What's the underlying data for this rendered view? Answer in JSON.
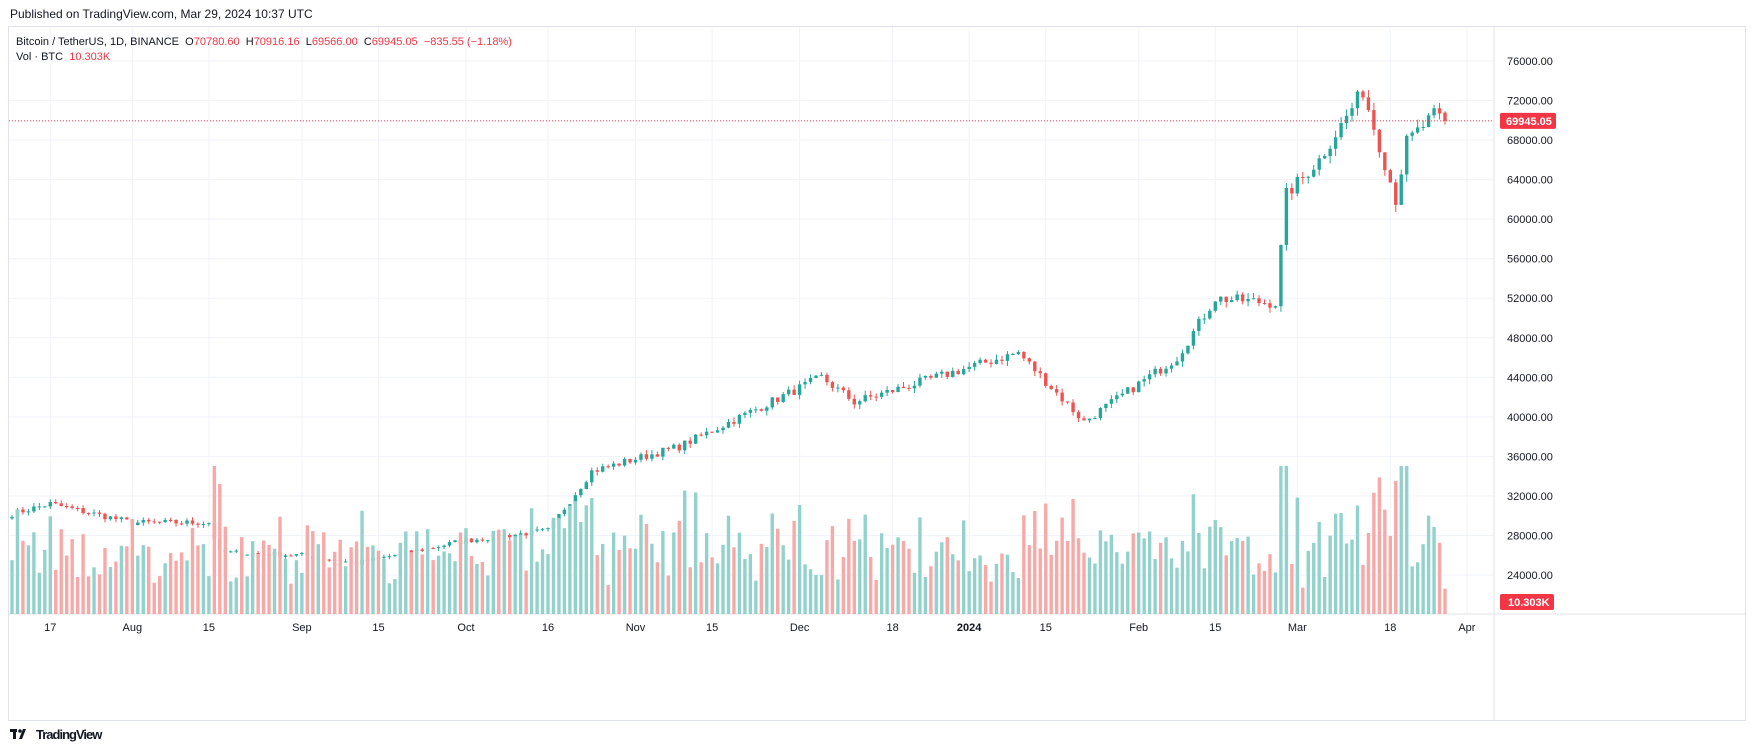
{
  "header": {
    "published": "Published on TradingView.com, Mar 29, 2024 10:37 UTC"
  },
  "legend": {
    "symbol": "Bitcoin / TetherUS, 1D, BINANCE",
    "o_label": "O",
    "o_value": "70780.60",
    "h_label": "H",
    "h_value": "70916.16",
    "l_label": "L",
    "l_value": "69566.00",
    "c_label": "C",
    "c_value": "69945.05",
    "change": "−835.55 (−1.18%)",
    "vol_label": "Vol · BTC",
    "vol_value": "10.303K"
  },
  "footer": {
    "logo_text": "TradingView"
  },
  "colors": {
    "up": "#26a69a",
    "down": "#ef5350",
    "vol_up": "#93d2cc",
    "vol_down": "#f7a9a7",
    "grid": "#f0f3fa",
    "last_price": "#f23645"
  },
  "chart_data": {
    "type": "candlestick",
    "title": "Bitcoin / TetherUS, 1D, BINANCE",
    "y_axis": {
      "ticks": [
        "76000.00",
        "72000.00",
        "68000.00",
        "64000.00",
        "60000.00",
        "56000.00",
        "52000.00",
        "48000.00",
        "44000.00",
        "40000.00",
        "36000.00",
        "32000.00",
        "28000.00",
        "24000.00"
      ],
      "ylim": [
        22000,
        78000
      ]
    },
    "x_axis": {
      "ticks": [
        "17",
        "Aug",
        "15",
        "Sep",
        "15",
        "Oct",
        "16",
        "Nov",
        "15",
        "Dec",
        "18",
        "2024",
        "15",
        "Feb",
        "15",
        "Mar",
        "18",
        "Apr"
      ]
    },
    "last_price": "69945.05",
    "last_volume": "10.303K",
    "key_points": [
      [
        "Jul 10",
        30200
      ],
      [
        "Jul 17",
        31200
      ],
      [
        "Aug 1",
        29300
      ],
      [
        "Aug 15",
        29300
      ],
      [
        "Aug 17",
        26300
      ],
      [
        "Sep 1",
        26000
      ],
      [
        "Sep 11",
        25200
      ],
      [
        "Oct 1",
        27500
      ],
      [
        "Oct 16",
        28500
      ],
      [
        "Oct 24",
        34500
      ],
      [
        "Nov 9",
        37000
      ],
      [
        "Dec 5",
        44000
      ],
      [
        "Dec 11",
        41500
      ],
      [
        "Jan 10",
        46500
      ],
      [
        "Jan 22",
        39500
      ],
      [
        "Feb 8",
        46000
      ],
      [
        "Feb 15",
        52000
      ],
      [
        "Feb 26",
        51500
      ],
      [
        "Feb 28",
        62500
      ],
      [
        "Mar 5",
        66000
      ],
      [
        "Mar 13",
        73000
      ],
      [
        "Mar 19",
        62000
      ],
      [
        "Mar 21",
        67800
      ],
      [
        "Mar 26",
        70500
      ],
      [
        "Mar 28",
        69945
      ]
    ],
    "volume_range_k": [
      10,
      60
    ]
  }
}
